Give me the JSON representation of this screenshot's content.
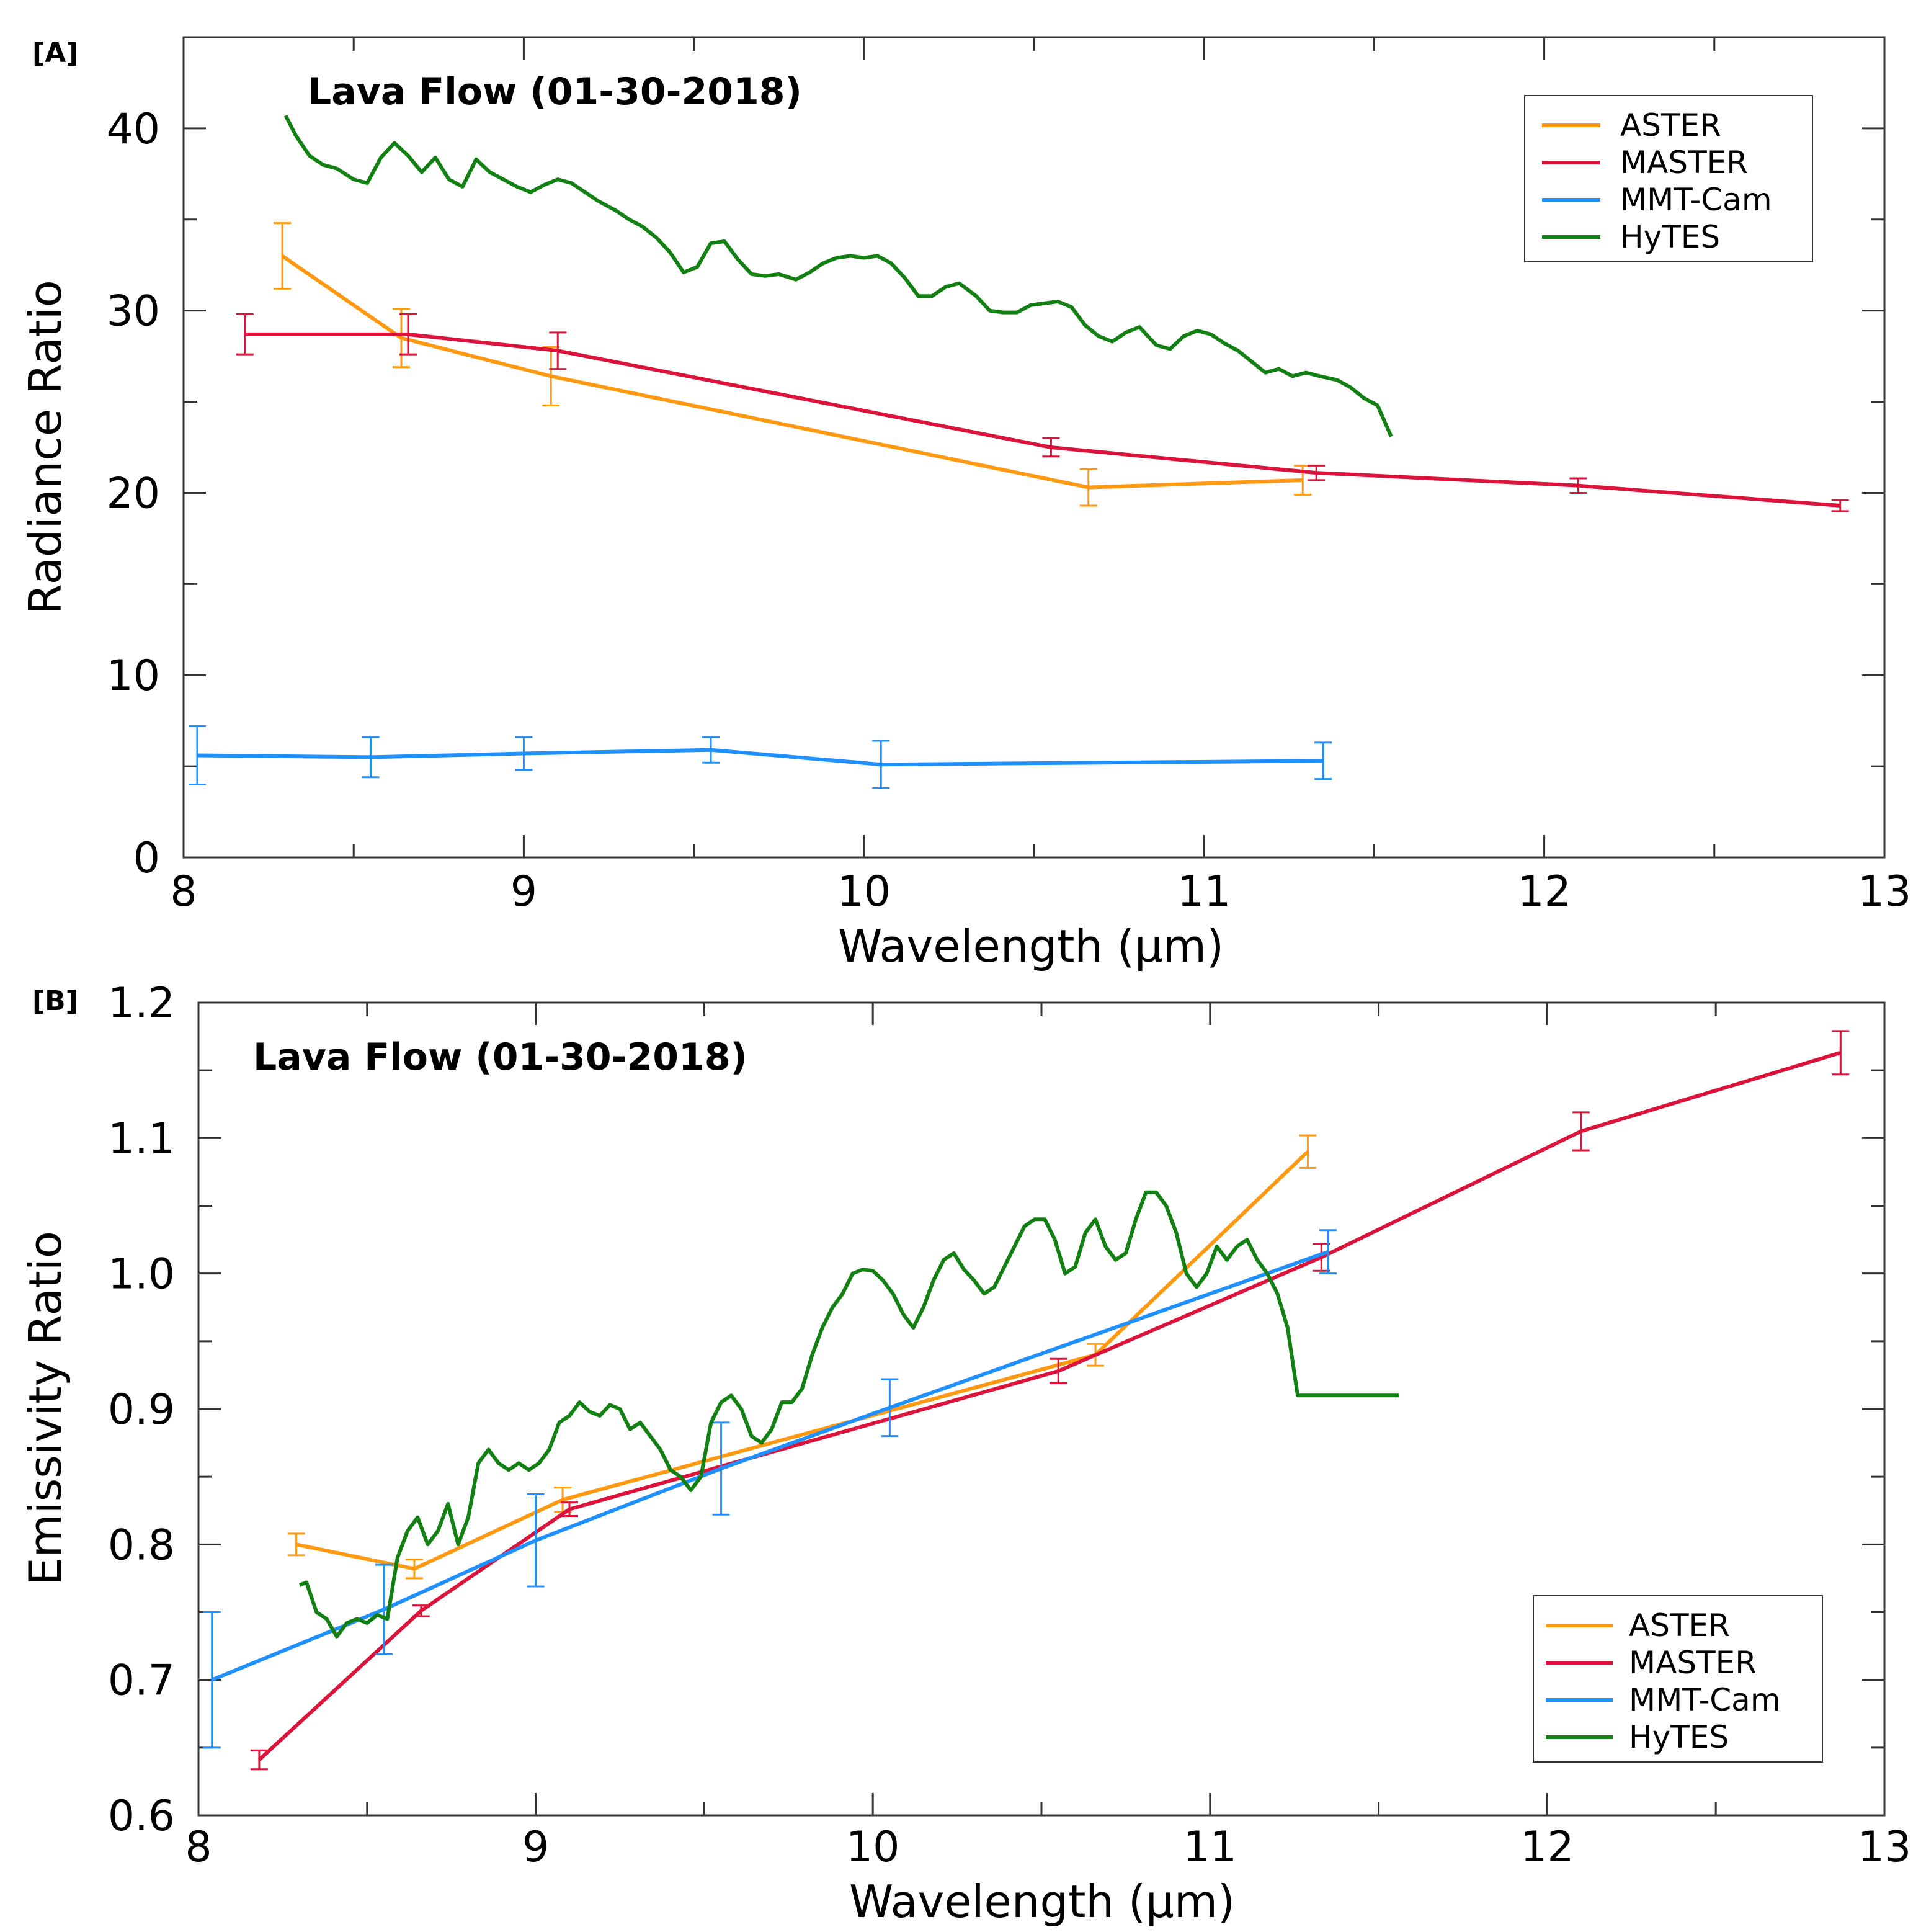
{
  "colors": {
    "ASTER": "#ff9912",
    "MASTER": "#dc143c",
    "MMT-Cam": "#1e90ff",
    "HyTES": "#128012"
  },
  "chart_data": [
    {
      "type": "line",
      "panel": "[A]",
      "title": "Lava Flow (01-30-2018)",
      "xlabel": "Wavelength (µm)",
      "ylabel": "Radiance Ratio",
      "xlim": [
        8,
        13
      ],
      "ylim": [
        0,
        45
      ],
      "xticks": [
        8,
        9,
        10,
        11,
        12,
        13
      ],
      "xtick_labels": [
        "8",
        "9",
        "10",
        "11",
        "12",
        "13"
      ],
      "yticks": [
        0,
        10,
        20,
        30,
        40
      ],
      "ytick_labels": [
        "0",
        "10",
        "20",
        "30",
        "40"
      ],
      "legend_position": "top-right",
      "series": [
        {
          "name": "ASTER",
          "x": [
            8.29,
            8.64,
            9.08,
            10.66,
            11.29
          ],
          "y": [
            33.0,
            28.5,
            26.4,
            20.3,
            20.7
          ],
          "err": [
            1.8,
            1.6,
            1.6,
            1.0,
            0.8
          ]
        },
        {
          "name": "MASTER",
          "x": [
            8.18,
            8.66,
            9.1,
            10.55,
            11.33,
            12.1,
            12.87
          ],
          "y": [
            28.7,
            28.7,
            27.8,
            22.5,
            21.1,
            20.4,
            19.3
          ],
          "err": [
            1.1,
            1.1,
            1.0,
            0.5,
            0.4,
            0.4,
            0.3
          ]
        },
        {
          "name": "MMT-Cam",
          "x": [
            8.04,
            8.55,
            9.0,
            9.55,
            10.05,
            11.35
          ],
          "y": [
            5.6,
            5.5,
            5.7,
            5.9,
            5.1,
            5.3
          ],
          "err": [
            1.6,
            1.1,
            0.9,
            0.7,
            1.3,
            1.0
          ]
        },
        {
          "name": "HyTES",
          "x": [
            8.3,
            8.33,
            8.37,
            8.41,
            8.45,
            8.5,
            8.54,
            8.58,
            8.62,
            8.66,
            8.7,
            8.74,
            8.78,
            8.82,
            8.86,
            8.9,
            8.94,
            8.98,
            9.02,
            9.06,
            9.1,
            9.14,
            9.18,
            9.22,
            9.27,
            9.31,
            9.35,
            9.39,
            9.43,
            9.47,
            9.51,
            9.55,
            9.59,
            9.63,
            9.67,
            9.71,
            9.75,
            9.8,
            9.84,
            9.88,
            9.92,
            9.96,
            10.0,
            10.04,
            10.08,
            10.12,
            10.16,
            10.2,
            10.24,
            10.28,
            10.33,
            10.37,
            10.41,
            10.45,
            10.49,
            10.53,
            10.57,
            10.61,
            10.65,
            10.69,
            10.73,
            10.77,
            10.81,
            10.86,
            10.9,
            10.94,
            10.98,
            11.02,
            11.06,
            11.1,
            11.14,
            11.18,
            11.22,
            11.26,
            11.3,
            11.34,
            11.39,
            11.43,
            11.47,
            11.51,
            11.55
          ],
          "y": [
            40.7,
            39.6,
            38.5,
            38.0,
            37.8,
            37.2,
            37.0,
            38.4,
            39.2,
            38.5,
            37.6,
            38.4,
            37.2,
            36.8,
            38.3,
            37.6,
            37.2,
            36.8,
            36.5,
            36.9,
            37.2,
            37.0,
            36.5,
            36.0,
            35.5,
            35.0,
            34.6,
            34.0,
            33.2,
            32.1,
            32.4,
            33.7,
            33.8,
            32.8,
            32.0,
            31.9,
            32.0,
            31.7,
            32.1,
            32.6,
            32.9,
            33.0,
            32.9,
            33.0,
            32.6,
            31.8,
            30.8,
            30.8,
            31.3,
            31.5,
            30.8,
            30.0,
            29.9,
            29.9,
            30.3,
            30.4,
            30.5,
            30.2,
            29.2,
            28.6,
            28.3,
            28.8,
            29.1,
            28.1,
            27.9,
            28.6,
            28.9,
            28.7,
            28.2,
            27.8,
            27.2,
            26.6,
            26.8,
            26.4,
            26.6,
            26.4,
            26.2,
            25.8,
            25.2,
            24.8,
            23.1
          ]
        }
      ]
    },
    {
      "type": "line",
      "panel": "[B]",
      "title": "Lava Flow (01-30-2018)",
      "xlabel": "Wavelength (µm)",
      "ylabel": "Emissivity Ratio",
      "xlim": [
        8,
        13
      ],
      "ylim": [
        0.6,
        1.2
      ],
      "xticks": [
        8,
        9,
        10,
        11,
        12,
        13
      ],
      "xtick_labels": [
        "8",
        "9",
        "10",
        "11",
        "12",
        "13"
      ],
      "yticks": [
        0.6,
        0.7,
        0.8,
        0.9,
        1.0,
        1.1,
        1.2
      ],
      "ytick_labels": [
        "0.6",
        "0.7",
        "0.8",
        "0.9",
        "1.0",
        "1.1",
        "1.2"
      ],
      "legend_position": "bottom-right",
      "series": [
        {
          "name": "ASTER",
          "x": [
            8.29,
            8.64,
            9.08,
            10.66,
            11.29
          ],
          "y": [
            0.8,
            0.782,
            0.833,
            0.94,
            1.09
          ],
          "err": [
            0.008,
            0.007,
            0.009,
            0.008,
            0.012
          ]
        },
        {
          "name": "MASTER",
          "x": [
            8.18,
            8.66,
            9.1,
            10.55,
            11.33,
            12.1,
            12.87
          ],
          "y": [
            0.641,
            0.751,
            0.826,
            0.928,
            1.012,
            1.105,
            1.163
          ],
          "err": [
            0.007,
            0.004,
            0.005,
            0.009,
            0.01,
            0.014,
            0.016
          ]
        },
        {
          "name": "MMT-Cam",
          "x": [
            8.04,
            8.55,
            9.0,
            9.55,
            10.05,
            11.35
          ],
          "y": [
            0.7,
            0.752,
            0.803,
            0.856,
            0.901,
            1.016
          ],
          "err": [
            0.05,
            0.033,
            0.034,
            0.034,
            0.021,
            0.016
          ]
        },
        {
          "name": "HyTES",
          "x": [
            8.3,
            8.32,
            8.35,
            8.38,
            8.41,
            8.44,
            8.47,
            8.5,
            8.53,
            8.56,
            8.59,
            8.62,
            8.65,
            8.68,
            8.71,
            8.74,
            8.77,
            8.8,
            8.83,
            8.86,
            8.89,
            8.92,
            8.95,
            8.98,
            9.01,
            9.04,
            9.07,
            9.1,
            9.13,
            9.16,
            9.19,
            9.22,
            9.25,
            9.28,
            9.31,
            9.34,
            9.37,
            9.4,
            9.43,
            9.46,
            9.49,
            9.52,
            9.55,
            9.58,
            9.61,
            9.64,
            9.67,
            9.7,
            9.73,
            9.76,
            9.79,
            9.82,
            9.85,
            9.88,
            9.91,
            9.94,
            9.97,
            10.0,
            10.03,
            10.06,
            10.09,
            10.12,
            10.15,
            10.18,
            10.21,
            10.24,
            10.27,
            10.3,
            10.33,
            10.36,
            10.39,
            10.42,
            10.45,
            10.48,
            10.51,
            10.54,
            10.57,
            10.6,
            10.63,
            10.66,
            10.69,
            10.72,
            10.75,
            10.78,
            10.81,
            10.84,
            10.87,
            10.9,
            10.93,
            10.96,
            10.99,
            11.02,
            11.05,
            11.08,
            11.11,
            11.14,
            11.17,
            11.2,
            11.23,
            11.26,
            11.29,
            11.32,
            11.35,
            11.38,
            11.41,
            11.44,
            11.47,
            11.5,
            11.53,
            11.55,
            11.56
          ],
          "y": [
            0.77,
            0.772,
            0.75,
            0.745,
            0.732,
            0.742,
            0.745,
            0.742,
            0.748,
            0.745,
            0.79,
            0.81,
            0.82,
            0.8,
            0.81,
            0.83,
            0.8,
            0.82,
            0.86,
            0.87,
            0.86,
            0.855,
            0.86,
            0.855,
            0.86,
            0.87,
            0.89,
            0.895,
            0.905,
            0.898,
            0.895,
            0.903,
            0.9,
            0.885,
            0.89,
            0.88,
            0.87,
            0.855,
            0.85,
            0.84,
            0.85,
            0.89,
            0.905,
            0.91,
            0.9,
            0.88,
            0.875,
            0.885,
            0.905,
            0.905,
            0.915,
            0.94,
            0.96,
            0.975,
            0.985,
            1.0,
            1.003,
            1.002,
            0.995,
            0.985,
            0.97,
            0.96,
            0.975,
            0.995,
            1.01,
            1.015,
            1.003,
            0.995,
            0.985,
            0.99,
            1.005,
            1.02,
            1.035,
            1.04,
            1.04,
            1.025,
            1.0,
            1.005,
            1.03,
            1.04,
            1.02,
            1.01,
            1.015,
            1.04,
            1.06,
            1.06,
            1.05,
            1.03,
            1.0,
            0.99,
            1.0,
            1.02,
            1.01,
            1.02,
            1.025,
            1.01,
            1.0,
            0.985,
            0.96,
            0.91,
            0.91,
            0.91,
            0.91,
            0.91,
            0.91,
            0.91,
            0.91,
            0.91,
            0.91,
            0.91,
            0.91
          ]
        }
      ]
    }
  ]
}
